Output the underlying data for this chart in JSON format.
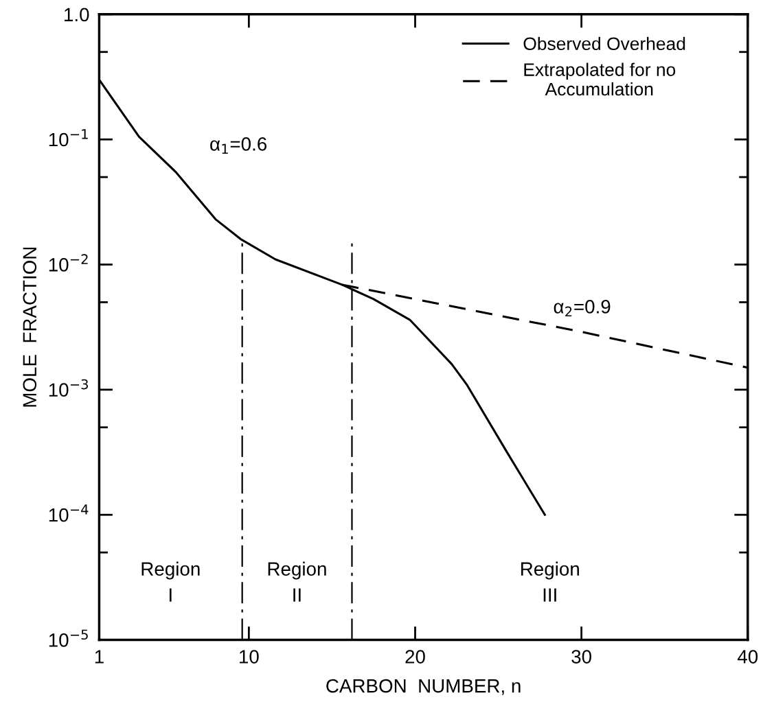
{
  "chart_data": {
    "type": "line",
    "xlabel": "CARBON  NUMBER, n",
    "ylabel": "MOLE  FRACTION",
    "log": "y",
    "xlim": [
      1,
      40
    ],
    "xticks": [
      1,
      10,
      20,
      30,
      40
    ],
    "ylim": [
      1e-05,
      1.0
    ],
    "yticks": [
      {
        "value": 1.0,
        "label": "1.0"
      },
      {
        "value": 0.5,
        "label": null
      },
      {
        "value": 0.1,
        "label": "10$^{−1}$"
      },
      {
        "value": 0.05,
        "label": null
      },
      {
        "value": 0.01,
        "label": "10$^{−2}$"
      },
      {
        "value": 0.005,
        "label": null
      },
      {
        "value": 0.001,
        "label": "10$^{−3}$"
      },
      {
        "value": 0.0005,
        "label": null
      },
      {
        "value": 0.0001,
        "label": "10$^{−4}$"
      },
      {
        "value": 5e-05,
        "label": null
      },
      {
        "value": 1e-05,
        "label": "10$^{−5}$"
      }
    ],
    "grid": false,
    "legend": "top right",
    "marker": "none",
    "series": [
      {
        "name": "Observed Overhead",
        "color": "#000000",
        "line_style": "solid",
        "x": [
          1,
          3.4,
          5.6,
          8.0,
          9.5,
          11.6,
          15.6,
          17.5,
          19.7,
          22.2,
          23.1,
          25.5,
          27.8
        ],
        "values": [
          0.3,
          0.105,
          0.055,
          0.023,
          0.016,
          0.011,
          0.0069,
          0.0053,
          0.0036,
          0.0016,
          0.0011,
          0.00032,
          0.0001
        ]
      },
      {
        "name": "Extrapolated for no\nAccumulation",
        "color": "#000000",
        "line_style": "dashed",
        "x": [
          15.6,
          30,
          40
        ],
        "values": [
          0.0069,
          0.0029,
          0.0015
        ]
      }
    ],
    "ref_lines": [
      {
        "axis": "x",
        "value": 9.6,
        "line_style": "dashdot"
      },
      {
        "axis": "x",
        "value": 16.2,
        "line_style": "dashdot"
      }
    ],
    "annotations": [
      "α$_{1}$=0.6",
      "α$_{2}$=0.9",
      "Region\nI",
      "Region\nII",
      "Region\nIII"
    ]
  }
}
